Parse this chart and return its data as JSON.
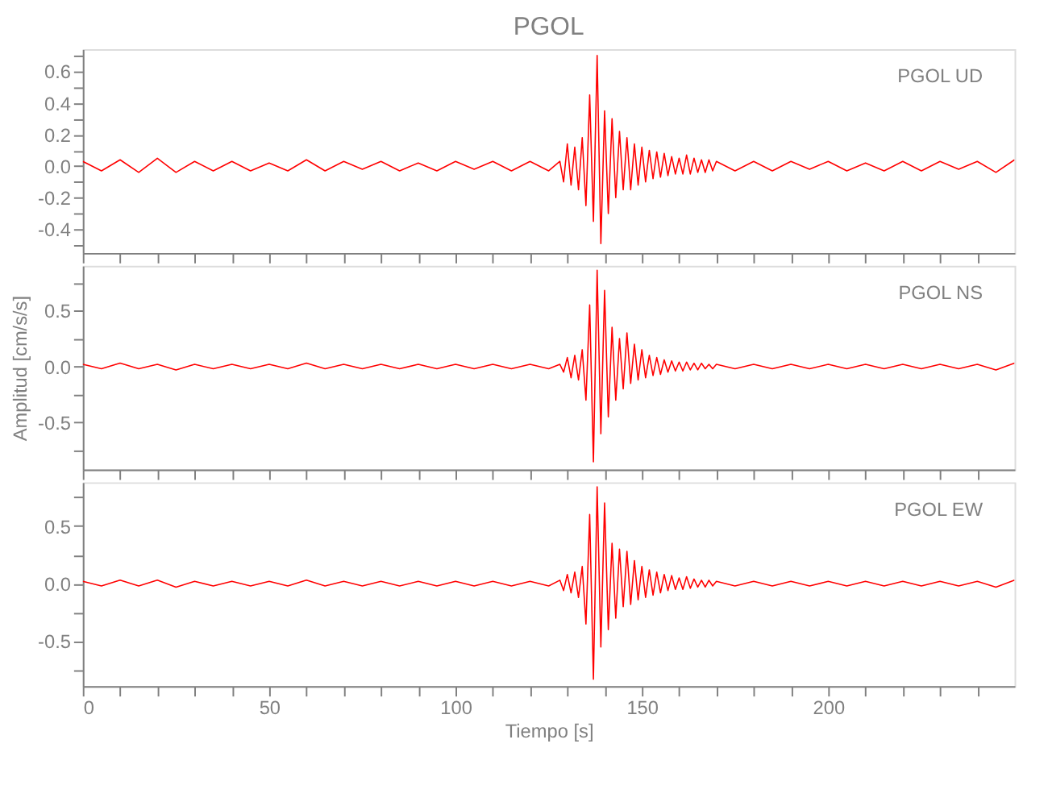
{
  "chart_data": [
    {
      "type": "line",
      "title": "PGOL",
      "annotations": [
        "PGOL   UD"
      ],
      "tick_labels": "y",
      "grid": false,
      "marker": "none",
      "line_style": "solid",
      "x": [
        0,
        5,
        10,
        15,
        20,
        25,
        30,
        35,
        40,
        45,
        50,
        55,
        60,
        65,
        70,
        75,
        80,
        85,
        90,
        95,
        100,
        105,
        110,
        115,
        120,
        125,
        128,
        129,
        130,
        131,
        132,
        133,
        134,
        135,
        136,
        137,
        138,
        139,
        140,
        141,
        142,
        143,
        144,
        145,
        146,
        147,
        148,
        149,
        150,
        151,
        152,
        153,
        154,
        155,
        156,
        157,
        158,
        159,
        160,
        161,
        162,
        163,
        164,
        165,
        166,
        167,
        168,
        169,
        170,
        175,
        180,
        185,
        190,
        195,
        200,
        205,
        210,
        215,
        220,
        225,
        230,
        235,
        240,
        245,
        250
      ],
      "series": [
        {
          "color": "#ff0000",
          "values": [
            0.03,
            -0.03,
            0.04,
            -0.04,
            0.05,
            -0.04,
            0.03,
            -0.03,
            0.03,
            -0.03,
            0.02,
            -0.03,
            0.04,
            -0.03,
            0.03,
            -0.02,
            0.03,
            -0.03,
            0.02,
            -0.03,
            0.03,
            -0.02,
            0.03,
            -0.03,
            0.03,
            -0.03,
            0.03,
            -0.1,
            0.14,
            -0.12,
            0.12,
            -0.15,
            0.18,
            -0.25,
            0.45,
            -0.35,
            0.7,
            -0.49,
            0.35,
            -0.3,
            0.3,
            -0.2,
            0.22,
            -0.15,
            0.18,
            -0.15,
            0.14,
            -0.12,
            0.12,
            -0.1,
            0.1,
            -0.08,
            0.09,
            -0.07,
            0.08,
            -0.06,
            0.06,
            -0.05,
            0.05,
            -0.05,
            0.07,
            -0.05,
            0.05,
            -0.04,
            0.04,
            -0.04,
            0.04,
            -0.03,
            0.03,
            -0.03,
            0.03,
            -0.03,
            0.03,
            -0.02,
            0.03,
            -0.03,
            0.02,
            -0.03,
            0.03,
            -0.03,
            0.03,
            -0.02,
            0.03,
            -0.04,
            0.04
          ]
        }
      ],
      "xlim": [
        0,
        250
      ],
      "xticks": [
        {
          "value": 0,
          "label": null
        },
        {
          "value": 10,
          "label": null
        },
        {
          "value": 20,
          "label": null
        },
        {
          "value": 30,
          "label": null
        },
        {
          "value": 40,
          "label": null
        },
        {
          "value": 50,
          "label": null
        },
        {
          "value": 60,
          "label": null
        },
        {
          "value": 70,
          "label": null
        },
        {
          "value": 80,
          "label": null
        },
        {
          "value": 90,
          "label": null
        },
        {
          "value": 100,
          "label": null
        },
        {
          "value": 110,
          "label": null
        },
        {
          "value": 120,
          "label": null
        },
        {
          "value": 130,
          "label": null
        },
        {
          "value": 140,
          "label": null
        },
        {
          "value": 150,
          "label": null
        },
        {
          "value": 160,
          "label": null
        },
        {
          "value": 170,
          "label": null
        },
        {
          "value": 180,
          "label": null
        },
        {
          "value": 190,
          "label": null
        },
        {
          "value": 200,
          "label": null
        },
        {
          "value": 210,
          "label": null
        },
        {
          "value": 220,
          "label": null
        },
        {
          "value": 230,
          "label": null
        },
        {
          "value": 240,
          "label": null
        }
      ],
      "ylim": [
        -0.55,
        0.74
      ],
      "yticks": [
        {
          "value": -0.5,
          "label": null
        },
        {
          "value": -0.4,
          "label": "-0.4"
        },
        {
          "value": -0.3,
          "label": null
        },
        {
          "value": -0.2,
          "label": "-0.2"
        },
        {
          "value": -0.1,
          "label": null
        },
        {
          "value": 0,
          "label": "0.0"
        },
        {
          "value": 0.1,
          "label": null
        },
        {
          "value": 0.2,
          "label": "0.2"
        },
        {
          "value": 0.3,
          "label": null
        },
        {
          "value": 0.4,
          "label": "0.4"
        },
        {
          "value": 0.5,
          "label": null
        },
        {
          "value": 0.6,
          "label": "0.6"
        },
        {
          "value": 0.7,
          "label": null
        }
      ]
    },
    {
      "type": "line",
      "ylabel": "Amplitud [cm/s/s]",
      "annotations": [
        "PGOL   NS"
      ],
      "tick_labels": "y",
      "grid": false,
      "marker": "none",
      "line_style": "solid",
      "x": [
        0,
        5,
        10,
        15,
        20,
        25,
        30,
        35,
        40,
        45,
        50,
        55,
        60,
        65,
        70,
        75,
        80,
        85,
        90,
        95,
        100,
        105,
        110,
        115,
        120,
        125,
        128,
        129,
        130,
        131,
        132,
        133,
        134,
        135,
        136,
        137,
        138,
        139,
        140,
        141,
        142,
        143,
        144,
        145,
        146,
        147,
        148,
        149,
        150,
        151,
        152,
        153,
        154,
        155,
        156,
        157,
        158,
        159,
        160,
        161,
        162,
        163,
        164,
        165,
        166,
        167,
        168,
        169,
        170,
        175,
        180,
        185,
        190,
        195,
        200,
        205,
        210,
        215,
        220,
        225,
        230,
        235,
        240,
        245,
        250
      ],
      "series": [
        {
          "color": "#ff0000",
          "values": [
            0.02,
            -0.02,
            0.03,
            -0.02,
            0.02,
            -0.03,
            0.02,
            -0.02,
            0.02,
            -0.02,
            0.02,
            -0.02,
            0.03,
            -0.02,
            0.02,
            -0.02,
            0.02,
            -0.02,
            0.02,
            -0.02,
            0.02,
            -0.02,
            0.02,
            -0.02,
            0.02,
            -0.02,
            0.02,
            -0.05,
            0.08,
            -0.1,
            0.1,
            -0.12,
            0.15,
            -0.3,
            0.55,
            -0.85,
            0.86,
            -0.6,
            0.68,
            -0.45,
            0.35,
            -0.3,
            0.25,
            -0.2,
            0.3,
            -0.15,
            0.2,
            -0.12,
            0.15,
            -0.1,
            0.1,
            -0.08,
            0.08,
            -0.07,
            0.06,
            -0.05,
            0.05,
            -0.04,
            0.04,
            -0.04,
            0.04,
            -0.03,
            0.03,
            -0.03,
            0.03,
            -0.02,
            0.02,
            -0.02,
            0.02,
            -0.02,
            0.02,
            -0.02,
            0.02,
            -0.02,
            0.02,
            -0.02,
            0.02,
            -0.02,
            0.02,
            -0.02,
            0.02,
            -0.02,
            0.02,
            -0.03,
            0.03
          ]
        }
      ],
      "xlim": [
        0,
        250
      ],
      "xticks": [
        {
          "value": 0,
          "label": null
        },
        {
          "value": 10,
          "label": null
        },
        {
          "value": 20,
          "label": null
        },
        {
          "value": 30,
          "label": null
        },
        {
          "value": 40,
          "label": null
        },
        {
          "value": 50,
          "label": null
        },
        {
          "value": 60,
          "label": null
        },
        {
          "value": 70,
          "label": null
        },
        {
          "value": 80,
          "label": null
        },
        {
          "value": 90,
          "label": null
        },
        {
          "value": 100,
          "label": null
        },
        {
          "value": 110,
          "label": null
        },
        {
          "value": 120,
          "label": null
        },
        {
          "value": 130,
          "label": null
        },
        {
          "value": 140,
          "label": null
        },
        {
          "value": 150,
          "label": null
        },
        {
          "value": 160,
          "label": null
        },
        {
          "value": 170,
          "label": null
        },
        {
          "value": 180,
          "label": null
        },
        {
          "value": 190,
          "label": null
        },
        {
          "value": 200,
          "label": null
        },
        {
          "value": 210,
          "label": null
        },
        {
          "value": 220,
          "label": null
        },
        {
          "value": 230,
          "label": null
        },
        {
          "value": 240,
          "label": null
        }
      ],
      "ylim": [
        -0.92,
        0.9
      ],
      "yticks": [
        {
          "value": -0.75,
          "label": null
        },
        {
          "value": -0.5,
          "label": "-0.5"
        },
        {
          "value": -0.25,
          "label": null
        },
        {
          "value": 0,
          "label": "0.0"
        },
        {
          "value": 0.25,
          "label": null
        },
        {
          "value": 0.5,
          "label": "0.5"
        },
        {
          "value": 0.75,
          "label": null
        }
      ]
    },
    {
      "type": "line",
      "xlabel": "Tiempo [s]",
      "annotations": [
        "PGOL   EW"
      ],
      "grid": false,
      "marker": "none",
      "line_style": "solid",
      "x": [
        0,
        5,
        10,
        15,
        20,
        25,
        30,
        35,
        40,
        45,
        50,
        55,
        60,
        65,
        70,
        75,
        80,
        85,
        90,
        95,
        100,
        105,
        110,
        115,
        120,
        125,
        128,
        129,
        130,
        131,
        132,
        133,
        134,
        135,
        136,
        137,
        138,
        139,
        140,
        141,
        142,
        143,
        144,
        145,
        146,
        147,
        148,
        149,
        150,
        151,
        152,
        153,
        154,
        155,
        156,
        157,
        158,
        159,
        160,
        161,
        162,
        163,
        164,
        165,
        166,
        167,
        168,
        169,
        170,
        175,
        180,
        185,
        190,
        195,
        200,
        205,
        210,
        215,
        220,
        225,
        230,
        235,
        240,
        245,
        250
      ],
      "series": [
        {
          "color": "#ff0000",
          "values": [
            0.02,
            -0.02,
            0.03,
            -0.02,
            0.03,
            -0.03,
            0.02,
            -0.02,
            0.02,
            -0.02,
            0.02,
            -0.02,
            0.03,
            -0.02,
            0.02,
            -0.02,
            0.02,
            -0.02,
            0.02,
            -0.02,
            0.02,
            -0.02,
            0.02,
            -0.02,
            0.02,
            -0.02,
            0.03,
            -0.06,
            0.08,
            -0.08,
            0.1,
            -0.12,
            0.15,
            -0.35,
            0.6,
            -0.83,
            0.84,
            -0.55,
            0.7,
            -0.4,
            0.35,
            -0.3,
            0.3,
            -0.2,
            0.28,
            -0.18,
            0.2,
            -0.14,
            0.15,
            -0.12,
            0.12,
            -0.1,
            0.1,
            -0.08,
            0.08,
            -0.06,
            0.07,
            -0.05,
            0.05,
            -0.05,
            0.06,
            -0.04,
            0.04,
            -0.03,
            0.03,
            -0.03,
            0.03,
            -0.02,
            0.02,
            -0.02,
            0.02,
            -0.02,
            0.02,
            -0.02,
            0.02,
            -0.02,
            0.02,
            -0.02,
            0.02,
            -0.02,
            0.02,
            -0.02,
            0.02,
            -0.03,
            0.03
          ]
        }
      ],
      "xlim": [
        0,
        250
      ],
      "xticks": [
        0,
        {
          "value": 10,
          "label": null
        },
        {
          "value": 20,
          "label": null
        },
        {
          "value": 30,
          "label": null
        },
        {
          "value": 40,
          "label": null
        },
        50,
        {
          "value": 60,
          "label": null
        },
        {
          "value": 70,
          "label": null
        },
        {
          "value": 80,
          "label": null
        },
        {
          "value": 90,
          "label": null
        },
        100,
        {
          "value": 110,
          "label": null
        },
        {
          "value": 120,
          "label": null
        },
        {
          "value": 130,
          "label": null
        },
        {
          "value": 140,
          "label": null
        },
        150,
        {
          "value": 160,
          "label": null
        },
        {
          "value": 170,
          "label": null
        },
        {
          "value": 180,
          "label": null
        },
        {
          "value": 190,
          "label": null
        },
        200,
        {
          "value": 210,
          "label": null
        },
        {
          "value": 220,
          "label": null
        },
        {
          "value": 230,
          "label": null
        },
        {
          "value": 240,
          "label": null
        }
      ],
      "ylim": [
        -0.89,
        0.88
      ],
      "yticks": [
        {
          "value": -0.75,
          "label": null
        },
        {
          "value": -0.5,
          "label": "-0.5"
        },
        {
          "value": -0.25,
          "label": null
        },
        {
          "value": 0,
          "label": "0.0"
        },
        {
          "value": 0.25,
          "label": null
        },
        {
          "value": 0.5,
          "label": "0.5"
        },
        {
          "value": 0.75,
          "label": null
        }
      ]
    }
  ]
}
